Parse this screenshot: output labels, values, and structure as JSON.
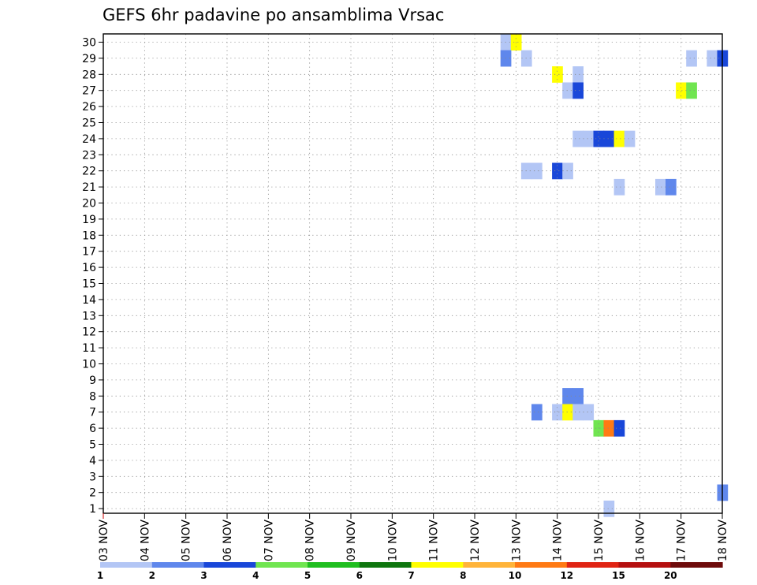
{
  "chart_data": {
    "type": "heatmap",
    "title": "GEFS 6hr padavine po ansamblima Vrsac",
    "xlabel": "",
    "ylabel": "",
    "x_tick_labels": [
      "03 NOV",
      "04 NOV",
      "05 NOV",
      "06 NOV",
      "07 NOV",
      "08 NOV",
      "09 NOV",
      "10 NOV",
      "11 NOV",
      "12 NOV",
      "13 NOV",
      "14 NOV",
      "15 NOV",
      "16 NOV",
      "17 NOV",
      "18 NOV"
    ],
    "y_tick_labels": [
      "1",
      "2",
      "3",
      "4",
      "5",
      "6",
      "7",
      "8",
      "9",
      "10",
      "11",
      "12",
      "13",
      "14",
      "15",
      "16",
      "17",
      "18",
      "19",
      "20",
      "21",
      "22",
      "23",
      "24",
      "25",
      "26",
      "27",
      "28",
      "29",
      "30"
    ],
    "xlim_days": [
      3,
      18
    ],
    "ylim_members": [
      1,
      30
    ],
    "grid": true,
    "colorbar": {
      "labels": [
        "1",
        "2",
        "3",
        "4",
        "5",
        "6",
        "7",
        "8",
        "10",
        "12",
        "15",
        "20"
      ],
      "colors": [
        "#b3c6f5",
        "#5f87ec",
        "#1947d9",
        "#70e550",
        "#1fbe1f",
        "#0e760e",
        "#ffff00",
        "#ffb43a",
        "#ff7a14",
        "#e02414",
        "#b51010",
        "#6e0b0b"
      ]
    },
    "cells": [
      {
        "member": 30,
        "day": 12.75,
        "level": 1
      },
      {
        "member": 30,
        "day": 13.0,
        "level": 7
      },
      {
        "member": 29,
        "day": 12.75,
        "level": 2
      },
      {
        "member": 29,
        "day": 13.25,
        "level": 1
      },
      {
        "member": 29,
        "day": 17.25,
        "level": 1
      },
      {
        "member": 29,
        "day": 17.75,
        "level": 1
      },
      {
        "member": 29,
        "day": 18.0,
        "level": 3
      },
      {
        "member": 28,
        "day": 14.0,
        "level": 7
      },
      {
        "member": 28,
        "day": 14.5,
        "level": 1
      },
      {
        "member": 27,
        "day": 14.25,
        "level": 1
      },
      {
        "member": 27,
        "day": 14.5,
        "level": 3
      },
      {
        "member": 27,
        "day": 17.0,
        "level": 7
      },
      {
        "member": 27,
        "day": 17.25,
        "level": 4
      },
      {
        "member": 24,
        "day": 14.5,
        "level": 1
      },
      {
        "member": 24,
        "day": 14.75,
        "level": 1
      },
      {
        "member": 24,
        "day": 15.0,
        "level": 3
      },
      {
        "member": 24,
        "day": 15.25,
        "level": 3
      },
      {
        "member": 24,
        "day": 15.5,
        "level": 7
      },
      {
        "member": 24,
        "day": 15.75,
        "level": 1
      },
      {
        "member": 22,
        "day": 13.25,
        "level": 1
      },
      {
        "member": 22,
        "day": 13.5,
        "level": 1
      },
      {
        "member": 22,
        "day": 14.0,
        "level": 3
      },
      {
        "member": 22,
        "day": 14.25,
        "level": 1
      },
      {
        "member": 21,
        "day": 15.5,
        "level": 1
      },
      {
        "member": 21,
        "day": 16.5,
        "level": 1
      },
      {
        "member": 21,
        "day": 16.75,
        "level": 2
      },
      {
        "member": 8,
        "day": 14.25,
        "level": 2
      },
      {
        "member": 8,
        "day": 14.5,
        "level": 2
      },
      {
        "member": 7,
        "day": 13.5,
        "level": 2
      },
      {
        "member": 7,
        "day": 14.0,
        "level": 1
      },
      {
        "member": 7,
        "day": 14.25,
        "level": 7
      },
      {
        "member": 7,
        "day": 14.5,
        "level": 1
      },
      {
        "member": 7,
        "day": 14.75,
        "level": 1
      },
      {
        "member": 6,
        "day": 15.0,
        "level": 4
      },
      {
        "member": 6,
        "day": 15.25,
        "level": 9
      },
      {
        "member": 6,
        "day": 15.5,
        "level": 3
      },
      {
        "member": 2,
        "day": 18.0,
        "level": 2
      },
      {
        "member": 1,
        "day": 15.25,
        "level": 1
      }
    ]
  }
}
